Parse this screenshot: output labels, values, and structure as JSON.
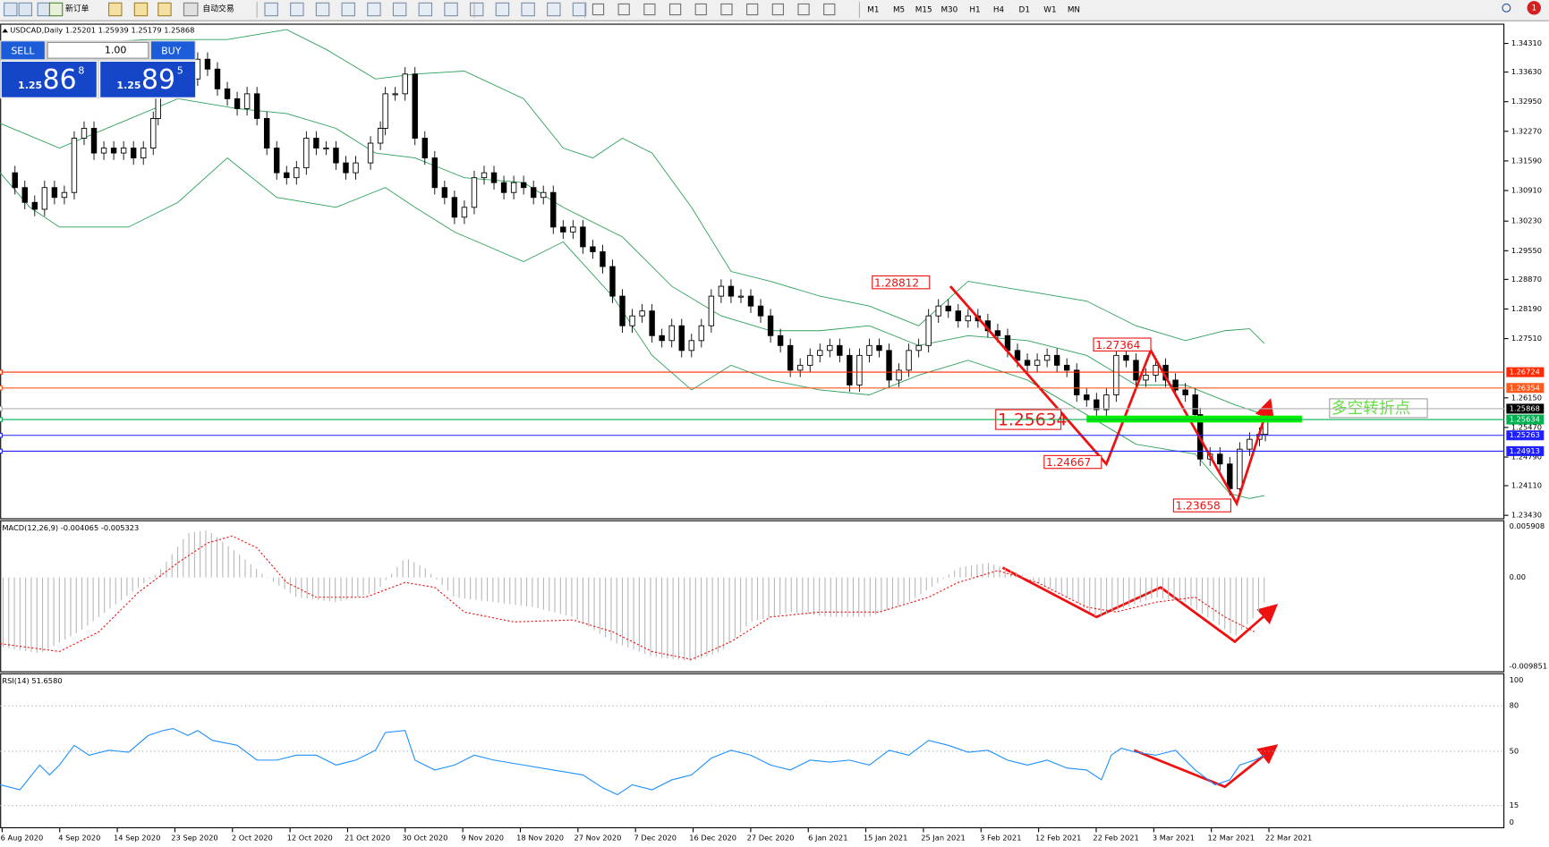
{
  "toolbar": {
    "buttons": [
      "新订单",
      "自动交易"
    ],
    "timeframes": [
      "M1",
      "M5",
      "M15",
      "M30",
      "H1",
      "H4",
      "D1",
      "W1",
      "MN"
    ]
  },
  "trade_panel": {
    "sell": "SELL",
    "lots": "1.00",
    "buy": "BUY",
    "bid_prefix": "1.25",
    "bid_big": "86",
    "bid_sup": "8",
    "ask_prefix": "1.25",
    "ask_big": "89",
    "ask_sup": "5"
  },
  "chart": {
    "header": "USDCAD,Daily  1.25201 1.25939 1.25179 1.25868",
    "price_axis": [
      "1.34310",
      "1.33630",
      "1.32950",
      "1.32270",
      "1.31590",
      "1.30910",
      "1.30230",
      "1.29550",
      "1.28870",
      "1.28190",
      "1.27510",
      "1.26150",
      "1.25470",
      "1.24790",
      "1.24110",
      "1.23430"
    ],
    "price_tags": [
      {
        "label": "1.26724",
        "color": "#ff2a00"
      },
      {
        "label": "1.26354",
        "color": "#ff5a1e"
      },
      {
        "label": "1.25868",
        "color": "#000000"
      },
      {
        "label": "1.25634",
        "color": "#00b050"
      },
      {
        "label": "1.25263",
        "color": "#2020ff"
      },
      {
        "label": "1.24913",
        "color": "#2020ff"
      }
    ],
    "annotations": [
      "1.28812",
      "1.27364",
      "1.25634",
      "1.24667",
      "1.23658"
    ],
    "pivot_label": "多空转折点"
  },
  "macd": {
    "label": "MACD(12,26,9) -0.004065 -0.005323",
    "axis": [
      "0.005908",
      "0.00",
      "-0.009851"
    ]
  },
  "rsi": {
    "label": "RSI(14) 51.6580",
    "axis": [
      "100",
      "80",
      "50",
      "15",
      "0"
    ]
  },
  "time_axis": [
    "6 Aug 2020",
    "4 Sep 2020",
    "14 Sep 2020",
    "23 Sep 2020",
    "2 Oct 2020",
    "12 Oct 2020",
    "21 Oct 2020",
    "30 Oct 2020",
    "9 Nov 2020",
    "18 Nov 2020",
    "27 Nov 2020",
    "7 Dec 2020",
    "16 Dec 2020",
    "27 Dec 2020",
    "6 Jan 2021",
    "15 Jan 2021",
    "25 Jan 2021",
    "3 Feb 2021",
    "12 Feb 2021",
    "22 Feb 2021",
    "3 Mar 2021",
    "12 Mar 2021",
    "22 Mar 2021"
  ]
}
